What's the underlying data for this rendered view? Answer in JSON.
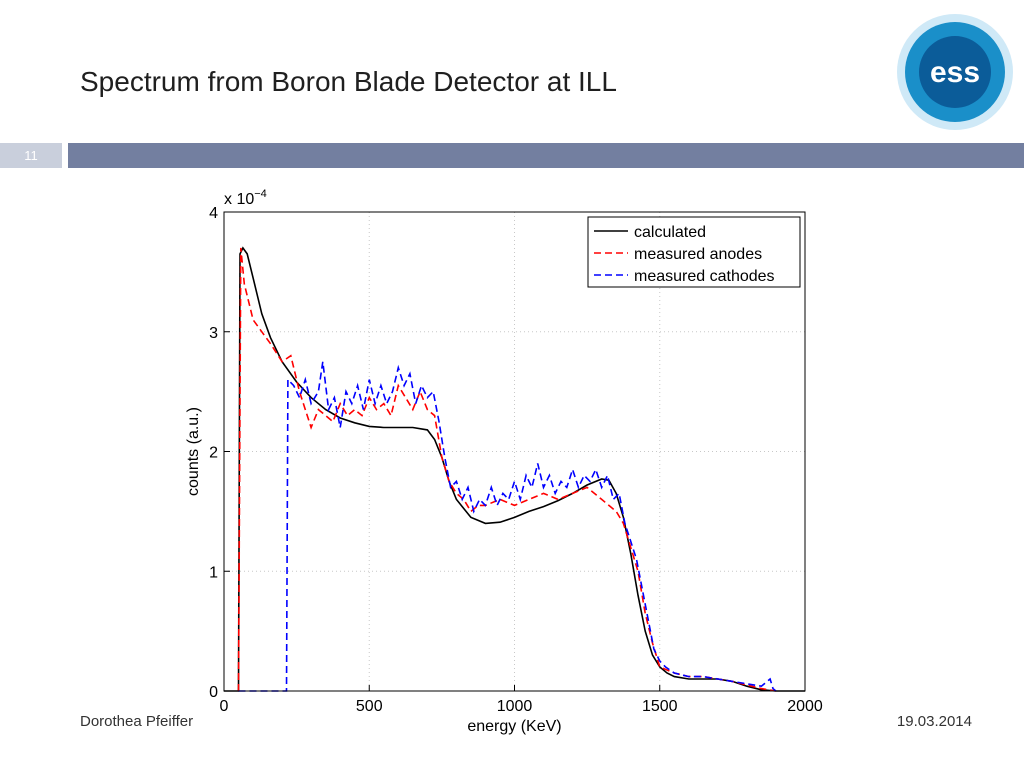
{
  "slide": {
    "title": "Spectrum from Boron Blade Detector at ILL",
    "number": "11",
    "author": "Dorothea Pfeiffer",
    "date": "19.03.2014",
    "logo": "ess"
  },
  "chart_data": {
    "type": "line",
    "xlabel": "energy (KeV)",
    "ylabel": "counts (a.u.)",
    "y_multiplier": {
      "base": "x 10",
      "exponent": "−4"
    },
    "xlim": [
      0,
      2000
    ],
    "xticks": [
      0,
      500,
      1000,
      1500,
      2000
    ],
    "ylim": [
      0,
      4
    ],
    "yticks": [
      0,
      1,
      2,
      3,
      4
    ],
    "grid": true,
    "legend": "top-right",
    "series": [
      {
        "name": "calculated",
        "color": "#000000",
        "line_style": "solid",
        "x": [
          0,
          50,
          55,
          65,
          80,
          100,
          130,
          160,
          200,
          250,
          300,
          350,
          400,
          450,
          500,
          550,
          600,
          650,
          700,
          725,
          750,
          775,
          800,
          850,
          900,
          950,
          1000,
          1050,
          1100,
          1150,
          1200,
          1250,
          1300,
          1325,
          1350,
          1375,
          1400,
          1425,
          1450,
          1475,
          1500,
          1525,
          1550,
          1600,
          1650,
          1700,
          1750,
          1800,
          1850,
          1900,
          1950,
          2000
        ],
        "values": [
          0,
          0,
          3.65,
          3.7,
          3.65,
          3.45,
          3.15,
          2.95,
          2.75,
          2.58,
          2.45,
          2.35,
          2.28,
          2.24,
          2.21,
          2.2,
          2.2,
          2.2,
          2.18,
          2.1,
          1.95,
          1.75,
          1.6,
          1.45,
          1.4,
          1.41,
          1.45,
          1.5,
          1.54,
          1.59,
          1.65,
          1.72,
          1.77,
          1.76,
          1.65,
          1.45,
          1.15,
          0.8,
          0.5,
          0.3,
          0.2,
          0.15,
          0.12,
          0.1,
          0.1,
          0.1,
          0.08,
          0.04,
          0.01,
          0,
          0,
          0
        ]
      },
      {
        "name": "measured anodes",
        "color": "#ff0000",
        "line_style": "dashed",
        "x": [
          50,
          58,
          70,
          100,
          130,
          160,
          200,
          230,
          260,
          300,
          325,
          350,
          375,
          400,
          425,
          450,
          475,
          500,
          525,
          550,
          575,
          600,
          625,
          650,
          675,
          700,
          725,
          750,
          775,
          800,
          825,
          850,
          875,
          900,
          950,
          1000,
          1050,
          1100,
          1150,
          1200,
          1250,
          1300,
          1325,
          1350,
          1375,
          1400,
          1425,
          1450,
          1475,
          1500,
          1550,
          1600,
          1650,
          1700,
          1750,
          1800,
          1850,
          1900
        ],
        "values": [
          0,
          3.7,
          3.4,
          3.1,
          3.0,
          2.9,
          2.75,
          2.8,
          2.5,
          2.2,
          2.35,
          2.3,
          2.25,
          2.4,
          2.3,
          2.35,
          2.3,
          2.45,
          2.35,
          2.4,
          2.3,
          2.55,
          2.45,
          2.35,
          2.5,
          2.35,
          2.3,
          1.95,
          1.75,
          1.65,
          1.6,
          1.5,
          1.55,
          1.55,
          1.6,
          1.55,
          1.6,
          1.65,
          1.6,
          1.65,
          1.7,
          1.6,
          1.55,
          1.5,
          1.4,
          1.2,
          1.0,
          0.65,
          0.4,
          0.2,
          0.15,
          0.12,
          0.12,
          0.1,
          0.08,
          0.05,
          0.02,
          0
        ]
      },
      {
        "name": "measured cathodes",
        "color": "#0000ff",
        "line_style": "dashed",
        "x": [
          50,
          215,
          220,
          240,
          260,
          280,
          300,
          325,
          340,
          360,
          380,
          400,
          420,
          440,
          460,
          480,
          500,
          520,
          540,
          560,
          580,
          600,
          620,
          640,
          660,
          680,
          700,
          720,
          740,
          760,
          780,
          800,
          820,
          840,
          860,
          880,
          900,
          920,
          940,
          960,
          980,
          1000,
          1020,
          1040,
          1060,
          1080,
          1100,
          1120,
          1140,
          1160,
          1180,
          1200,
          1220,
          1240,
          1260,
          1280,
          1300,
          1320,
          1340,
          1360,
          1380,
          1400,
          1420,
          1440,
          1460,
          1480,
          1500,
          1520,
          1550,
          1600,
          1650,
          1700,
          1750,
          1800,
          1850,
          1880,
          1890,
          1900
        ],
        "values": [
          0,
          0,
          2.6,
          2.55,
          2.45,
          2.6,
          2.4,
          2.5,
          2.75,
          2.35,
          2.45,
          2.2,
          2.5,
          2.4,
          2.55,
          2.35,
          2.6,
          2.4,
          2.55,
          2.4,
          2.5,
          2.7,
          2.55,
          2.65,
          2.4,
          2.55,
          2.45,
          2.5,
          2.25,
          1.95,
          1.7,
          1.75,
          1.6,
          1.7,
          1.5,
          1.6,
          1.55,
          1.7,
          1.55,
          1.65,
          1.6,
          1.75,
          1.6,
          1.8,
          1.7,
          1.9,
          1.7,
          1.8,
          1.65,
          1.75,
          1.7,
          1.85,
          1.7,
          1.8,
          1.75,
          1.85,
          1.7,
          1.8,
          1.6,
          1.65,
          1.4,
          1.25,
          1.1,
          0.85,
          0.6,
          0.35,
          0.25,
          0.2,
          0.15,
          0.12,
          0.12,
          0.1,
          0.08,
          0.06,
          0.04,
          0.1,
          0.02,
          0
        ]
      }
    ]
  }
}
